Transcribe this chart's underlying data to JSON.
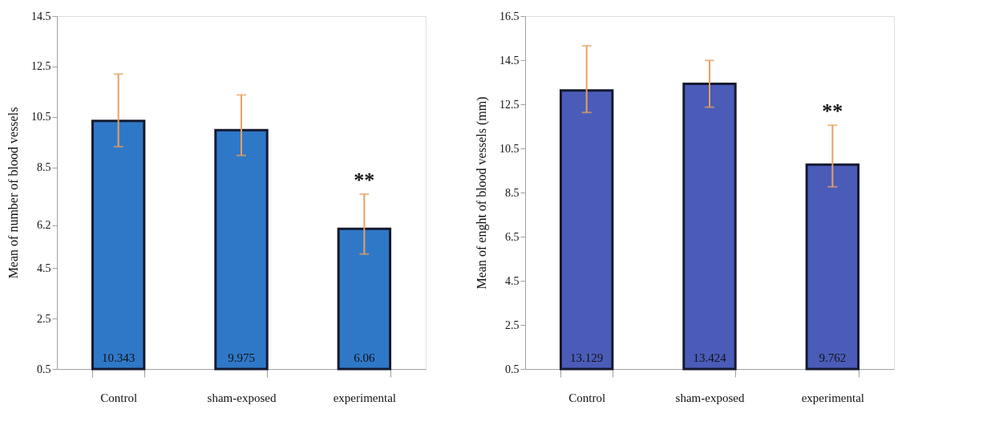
{
  "chart_data": [
    {
      "type": "bar",
      "ylabel": "Mean of number of blood vessels",
      "categories": [
        "Control",
        "sham-exposed",
        "experimental"
      ],
      "values": [
        10.343,
        9.975,
        6.06
      ],
      "color": "#2f78c8",
      "errors": [
        [
          9.32,
          12.2
        ],
        [
          8.97,
          11.37
        ],
        [
          5.06,
          7.44
        ]
      ],
      "ylim": [
        0.5,
        14.5
      ],
      "yticks": [
        0.5,
        2.5,
        4.5,
        6.2,
        8.5,
        10.5,
        12.5,
        14.5
      ],
      "data_labels": true,
      "grid": false,
      "annotations": [
        {
          "text": "**",
          "x": "experimental",
          "y": 7.44
        }
      ]
    },
    {
      "type": "bar",
      "ylabel": "Mean of enght of blood vessels (mm)",
      "categories": [
        "Control",
        "sham-exposed",
        "experimental"
      ],
      "values": [
        13.129,
        13.424,
        9.762
      ],
      "color": "#4a5cb8",
      "errors": [
        [
          12.13,
          15.15
        ],
        [
          12.37,
          14.49
        ],
        [
          8.76,
          11.55
        ]
      ],
      "ylim": [
        0.5,
        16.5
      ],
      "yticks": [
        0.5,
        2.5,
        4.5,
        6.5,
        8.5,
        10.5,
        12.5,
        14.5,
        16.5
      ],
      "data_labels": true,
      "grid": false,
      "annotations": [
        {
          "text": "**",
          "x": "experimental",
          "y": 11.55
        }
      ]
    }
  ]
}
